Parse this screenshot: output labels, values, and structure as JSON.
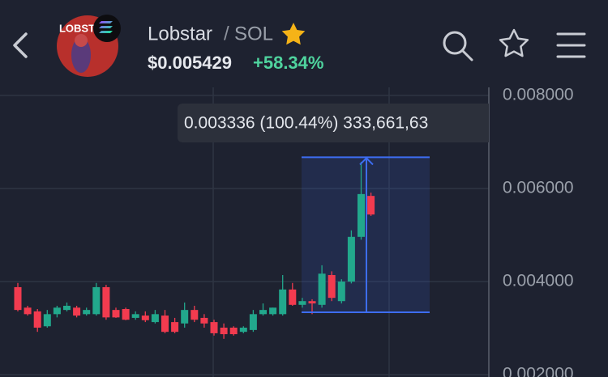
{
  "header": {
    "avatar_text": "LOBST",
    "title": "Lobstar",
    "separator": "/",
    "quote": "SOL",
    "price": "$0.005429",
    "change": "+58.34%"
  },
  "chart_data": {
    "type": "candlestick",
    "open": [
      0.00388,
      0.00344,
      0.00336,
      0.00304,
      0.0033,
      0.00339,
      0.00344,
      0.0033,
      0.0033,
      0.00388,
      0.00339,
      0.00341,
      0.00322,
      0.00327,
      0.00313,
      0.00327,
      0.00313,
      0.0031,
      0.00339,
      0.00322,
      0.00313,
      0.00301,
      0.00301,
      0.00292,
      0.00296,
      0.0033,
      0.0033,
      0.0033,
      0.00383,
      0.0035,
      0.00358,
      0.0035,
      0.00414,
      0.00358,
      0.004,
      0.00496,
      0.00584
    ],
    "high": [
      0.00397,
      0.00348,
      0.00341,
      0.00339,
      0.00348,
      0.00355,
      0.00348,
      0.00344,
      0.00397,
      0.00393,
      0.00344,
      0.00344,
      0.00336,
      0.00336,
      0.00339,
      0.00339,
      0.00322,
      0.00355,
      0.00348,
      0.0033,
      0.00318,
      0.0031,
      0.00304,
      0.00304,
      0.00339,
      0.00353,
      0.00344,
      0.00414,
      0.00397,
      0.00365,
      0.00362,
      0.00435,
      0.00422,
      0.00405,
      0.0051,
      0.00657,
      0.00591
    ],
    "low": [
      0.00336,
      0.00327,
      0.00292,
      0.00301,
      0.00323,
      0.00336,
      0.00323,
      0.00327,
      0.00327,
      0.00318,
      0.00322,
      0.00317,
      0.00318,
      0.00313,
      0.0031,
      0.00289,
      0.00289,
      0.00301,
      0.00313,
      0.00301,
      0.00284,
      0.00277,
      0.00284,
      0.00289,
      0.00292,
      0.00327,
      0.00327,
      0.00327,
      0.00348,
      0.00344,
      0.0033,
      0.00344,
      0.00358,
      0.00353,
      0.00396,
      0.0049,
      0.00541
    ],
    "close": [
      0.00339,
      0.0033,
      0.00301,
      0.0033,
      0.00344,
      0.00348,
      0.00327,
      0.00339,
      0.00388,
      0.00323,
      0.00323,
      0.00318,
      0.0033,
      0.00317,
      0.0033,
      0.00292,
      0.00292,
      0.00339,
      0.00318,
      0.0031,
      0.00289,
      0.00287,
      0.00287,
      0.00301,
      0.0033,
      0.00339,
      0.00344,
      0.00383,
      0.0035,
      0.00358,
      0.00353,
      0.00417,
      0.00365,
      0.004,
      0.00496,
      0.00588,
      0.00544
    ],
    "up_color": "#22a88c",
    "down_color": "#f23b4f",
    "ylim": [
      0.00195,
      0.00805
    ],
    "yticks": [
      {
        "value": 0.002,
        "label": "0.002000"
      },
      {
        "value": 0.004,
        "label": "0.004000"
      },
      {
        "value": 0.006,
        "label": "0.006000"
      },
      {
        "value": 0.008,
        "label": "0.008000"
      }
    ],
    "grid": true,
    "measure": {
      "range": [
        0.00334,
        0.00667
      ],
      "label": "0.003336 (100.44%) 333,661,63",
      "color": "#3d6df2"
    }
  }
}
